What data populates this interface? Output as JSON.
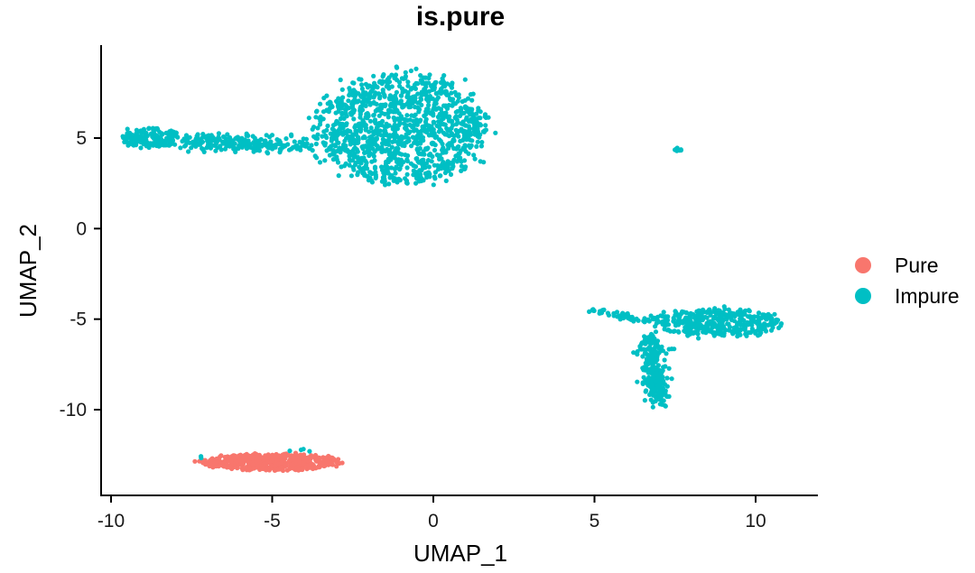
{
  "chart_data": {
    "type": "scatter",
    "title": "is.pure",
    "xlabel": "UMAP_1",
    "ylabel": "UMAP_2",
    "xlim": [
      -10.5,
      12
    ],
    "ylim": [
      -14.8,
      10
    ],
    "xticks": [
      -10,
      -5,
      0,
      5,
      10
    ],
    "yticks": [
      5,
      0,
      -5,
      -10
    ],
    "grid": false,
    "legend_position": "right",
    "series": [
      {
        "name": "Pure",
        "color": "#F8766D",
        "clusters": [
          {
            "shape": "ellipse",
            "cx": -5.0,
            "cy": -12.9,
            "rx": 2.1,
            "ry": 0.45,
            "n": 520
          }
        ]
      },
      {
        "name": "Impure",
        "color": "#00BFC4",
        "clusters": [
          {
            "shape": "ellipse",
            "cx": -1.0,
            "cy": 5.5,
            "rx": 2.6,
            "ry": 3.0,
            "n": 1200
          },
          {
            "shape": "ellipse",
            "cx": -8.8,
            "cy": 5.0,
            "rx": 0.9,
            "ry": 0.55,
            "n": 160
          },
          {
            "shape": "segment",
            "x1": -7.6,
            "y1": 4.8,
            "x2": -3.8,
            "y2": 4.6,
            "spread": 0.55,
            "n": 230
          },
          {
            "shape": "ellipse",
            "cx": 7.6,
            "cy": 4.35,
            "rx": 0.12,
            "ry": 0.12,
            "n": 8
          },
          {
            "shape": "ellipse",
            "cx": 8.8,
            "cy": -5.2,
            "rx": 2.0,
            "ry": 0.75,
            "n": 380
          },
          {
            "shape": "segment",
            "x1": 4.9,
            "y1": -4.5,
            "x2": 6.7,
            "y2": -5.1,
            "spread": 0.18,
            "n": 55
          },
          {
            "shape": "segment",
            "x1": 6.7,
            "y1": -6.0,
            "x2": 7.0,
            "y2": -9.6,
            "spread": 0.4,
            "n": 240
          },
          {
            "shape": "ellipse",
            "cx": -4.1,
            "cy": -12.3,
            "rx": 0.4,
            "ry": 0.12,
            "n": 4
          },
          {
            "shape": "ellipse",
            "cx": -7.2,
            "cy": -12.6,
            "rx": 0.05,
            "ry": 0.1,
            "n": 2
          }
        ]
      }
    ]
  }
}
